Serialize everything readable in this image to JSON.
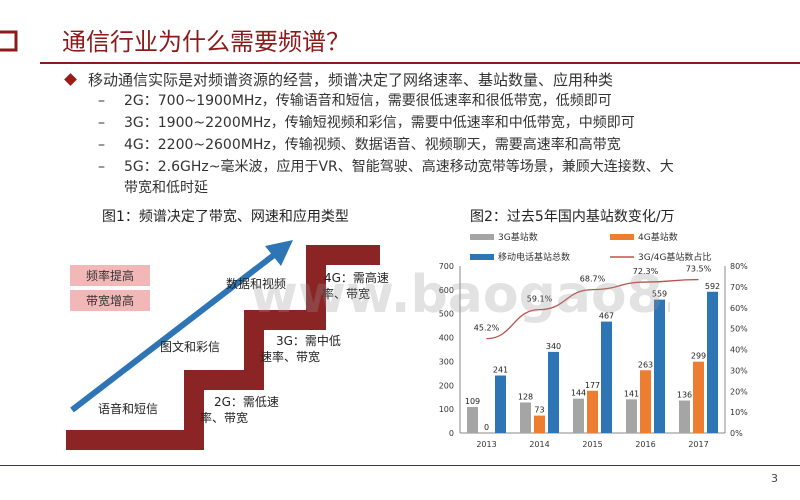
{
  "slide": {
    "title": "通信行业为什么需要频谱？",
    "page_number": "3",
    "watermark": "www.baogao8.com"
  },
  "bullets": {
    "main": "移动通信实际是对频谱资源的经营，频谱决定了网络速率、基站数量、应用种类",
    "items": [
      "2G：700~1900MHz，传输语音和短信，需要很低速率和很低带宽，低频即可",
      "3G：1900~2200MHz，传输短视频和彩信，需要中低速率和中低带宽，中频即可",
      "4G：2200~2600MHz，传输视频、数据语音、视频聊天，需要高速率和高带宽",
      "5G：2.6GHz~毫米波，应用于VR、智能驾驶、高速移动宽带等场景，兼顾大连接数、大"
    ],
    "item5_cont": "带宽和低时延",
    "dash": "–"
  },
  "fig1": {
    "caption": "图1：频谱决定了带宽、网速和应用类型",
    "label_pink_1": "频率提高",
    "label_pink_2": "带宽增高",
    "step_voice": "语音和短信",
    "step_mms": "图文和彩信",
    "step_video": "数据和视频",
    "step_2g_a": "2G：需低速",
    "step_2g_b": "率、带宽",
    "step_3g_a": "3G：需中低",
    "step_3g_b": "速率、带宽",
    "step_4g_a": "4G：需高速",
    "step_4g_b": "率、带宽"
  },
  "fig2": {
    "caption": "图2：过去5年国内基站数变化/万",
    "legend": {
      "s3g": "3G基站数",
      "s4g": "4G基站数",
      "total": "移动电话基站总数",
      "share": "3G/4G基站数占比"
    },
    "colors": {
      "s3g": "#A5A5A5",
      "s4g": "#ED7D31",
      "total": "#2E75B6",
      "share": "#C0504D"
    }
  },
  "chart_data": {
    "type": "bar",
    "title": "图2：过去5年国内基站数变化/万",
    "categories": [
      "2013",
      "2014",
      "2015",
      "2016",
      "2017"
    ],
    "series": [
      {
        "name": "3G基站数",
        "type": "bar",
        "axis": "left",
        "values": [
          109,
          128,
          144,
          141,
          136
        ],
        "labels": [
          "109",
          "128",
          "144",
          "141",
          "136"
        ]
      },
      {
        "name": "4G基站数",
        "type": "bar",
        "axis": "left",
        "values": [
          0,
          73,
          177,
          263,
          299
        ],
        "labels": [
          "0",
          "73",
          "177",
          "263",
          "299"
        ]
      },
      {
        "name": "移动电话基站总数",
        "type": "bar",
        "axis": "left",
        "values": [
          241,
          340,
          467,
          559,
          592
        ],
        "labels": [
          "241",
          "340",
          "467",
          "559",
          "592"
        ]
      },
      {
        "name": "3G/4G基站数占比",
        "type": "line",
        "axis": "right",
        "values": [
          45.2,
          59.1,
          68.7,
          72.3,
          73.5
        ],
        "labels": [
          "45.2%",
          "59.1%",
          "68.7%",
          "72.3%",
          "73.5%"
        ]
      }
    ],
    "ylim": [
      0,
      700
    ],
    "yticks": [
      "0",
      "100",
      "200",
      "300",
      "400",
      "500",
      "600",
      "700"
    ],
    "y2lim": [
      0,
      80
    ],
    "y2ticks": [
      "0%",
      "10%",
      "20%",
      "30%",
      "40%",
      "50%",
      "60%",
      "70%",
      "80%"
    ],
    "grid": false,
    "legend_position": "top"
  }
}
